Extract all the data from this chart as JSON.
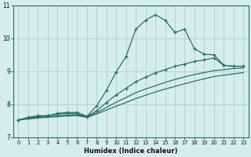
{
  "xlabel": "Humidex (Indice chaleur)",
  "background_color": "#d6eeeb",
  "grid_color": "#aed4d0",
  "line_color": "#2a6e65",
  "xlim": [
    -0.5,
    23.5
  ],
  "ylim": [
    7,
    11
  ],
  "yticks": [
    7,
    8,
    9,
    10,
    11
  ],
  "xticks": [
    0,
    1,
    2,
    3,
    4,
    5,
    6,
    7,
    8,
    9,
    10,
    11,
    12,
    13,
    14,
    15,
    16,
    17,
    18,
    19,
    20,
    21,
    22,
    23
  ],
  "line1_x": [
    0,
    1,
    2,
    3,
    4,
    5,
    6,
    7,
    8,
    9,
    10,
    11,
    12,
    13,
    14,
    15,
    16,
    17,
    18,
    19,
    20,
    21,
    22,
    23
  ],
  "line1_y": [
    7.52,
    7.6,
    7.65,
    7.65,
    7.72,
    7.75,
    7.75,
    7.63,
    7.95,
    8.42,
    8.98,
    9.45,
    10.28,
    10.55,
    10.72,
    10.55,
    10.18,
    10.28,
    9.68,
    9.52,
    9.5,
    9.18,
    9.15,
    9.15
  ],
  "line2_x": [
    0,
    1,
    2,
    3,
    4,
    5,
    6,
    7,
    8,
    9,
    10,
    11,
    12,
    13,
    14,
    15,
    16,
    17,
    18,
    19,
    20,
    21,
    22,
    23
  ],
  "line2_y": [
    7.52,
    7.58,
    7.62,
    7.65,
    7.7,
    7.72,
    7.72,
    7.62,
    7.8,
    8.05,
    8.28,
    8.48,
    8.68,
    8.82,
    8.95,
    9.05,
    9.15,
    9.22,
    9.3,
    9.35,
    9.4,
    9.18,
    9.15,
    9.15
  ],
  "line3_x": [
    0,
    1,
    2,
    3,
    4,
    5,
    6,
    7,
    8,
    9,
    10,
    11,
    12,
    13,
    14,
    15,
    16,
    17,
    18,
    19,
    20,
    21,
    22,
    23
  ],
  "line3_y": [
    7.52,
    7.57,
    7.6,
    7.62,
    7.65,
    7.67,
    7.68,
    7.61,
    7.74,
    7.9,
    8.06,
    8.2,
    8.35,
    8.46,
    8.56,
    8.66,
    8.75,
    8.83,
    8.9,
    8.96,
    9.02,
    9.05,
    9.08,
    9.1
  ],
  "line4_x": [
    0,
    1,
    2,
    3,
    4,
    5,
    6,
    7,
    8,
    9,
    10,
    11,
    12,
    13,
    14,
    15,
    16,
    17,
    18,
    19,
    20,
    21,
    22,
    23
  ],
  "line4_y": [
    7.52,
    7.55,
    7.58,
    7.6,
    7.62,
    7.64,
    7.65,
    7.6,
    7.7,
    7.82,
    7.94,
    8.05,
    8.17,
    8.27,
    8.37,
    8.46,
    8.54,
    8.62,
    8.7,
    8.77,
    8.84,
    8.88,
    8.92,
    8.96
  ]
}
